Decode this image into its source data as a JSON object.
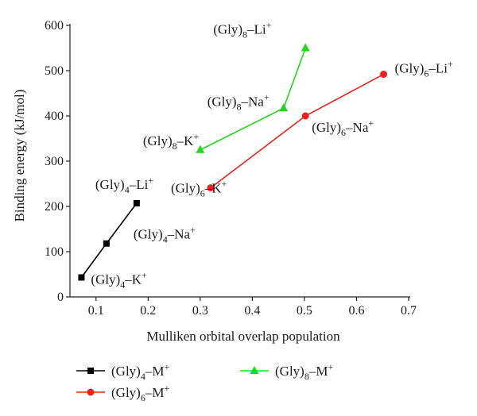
{
  "chart_data": {
    "type": "line",
    "xlabel": "Mulliken orbital overlap population",
    "ylabel": "Binding energy (kJ/mol)",
    "xlim": [
      0.05,
      0.7
    ],
    "ylim": [
      0,
      600
    ],
    "xticks": [
      "0.1",
      "0.2",
      "0.3",
      "0.4",
      "0.5",
      "0.6",
      "0.7"
    ],
    "yticks": [
      "0",
      "100",
      "200",
      "300",
      "400",
      "500",
      "600"
    ],
    "grid": false,
    "legend_position": "bottom",
    "series": [
      {
        "name": "(Gly)4-M+",
        "name_parts": {
          "base": "(Gly)",
          "sub": "4",
          "mid": "–M",
          "sup": "+"
        },
        "color": "#000000",
        "marker": "square",
        "points": [
          {
            "x": 0.072,
            "y": 43,
            "label": {
              "base": "(Gly)",
              "sub": "4",
              "mid": "–K",
              "sup": "+"
            }
          },
          {
            "x": 0.12,
            "y": 118,
            "label": {
              "base": "(Gly)",
              "sub": "4",
              "mid": "–Na",
              "sup": "+"
            }
          },
          {
            "x": 0.178,
            "y": 207,
            "label": {
              "base": "(Gly)",
              "sub": "4",
              "mid": "–Li",
              "sup": "+"
            }
          }
        ]
      },
      {
        "name": "(Gly)6-M+",
        "name_parts": {
          "base": "(Gly)",
          "sub": "6",
          "mid": "–M",
          "sup": "+"
        },
        "color": "#e8231e",
        "marker": "circle",
        "points": [
          {
            "x": 0.32,
            "y": 241,
            "label": {
              "base": "(Gly)",
              "sub": "6",
              "mid": "–K",
              "sup": "+"
            }
          },
          {
            "x": 0.502,
            "y": 400,
            "label": {
              "base": "(Gly)",
              "sub": "6",
              "mid": "–Na",
              "sup": "+"
            }
          },
          {
            "x": 0.652,
            "y": 492,
            "label": {
              "base": "(Gly)",
              "sub": "6",
              "mid": "–Li",
              "sup": "+"
            }
          }
        ]
      },
      {
        "name": "(Gly)8-M+",
        "name_parts": {
          "base": "(Gly)",
          "sub": "8",
          "mid": "–M",
          "sup": "+"
        },
        "color": "#22d61c",
        "marker": "triangle",
        "points": [
          {
            "x": 0.3,
            "y": 325,
            "label": {
              "base": "(Gly)",
              "sub": "8",
              "mid": "–K",
              "sup": "+"
            }
          },
          {
            "x": 0.46,
            "y": 417,
            "label": {
              "base": "(Gly)",
              "sub": "8",
              "mid": "–Na",
              "sup": "+"
            }
          },
          {
            "x": 0.502,
            "y": 550,
            "label": {
              "base": "(Gly)",
              "sub": "8",
              "mid": "–Li",
              "sup": "+"
            }
          }
        ]
      }
    ]
  }
}
